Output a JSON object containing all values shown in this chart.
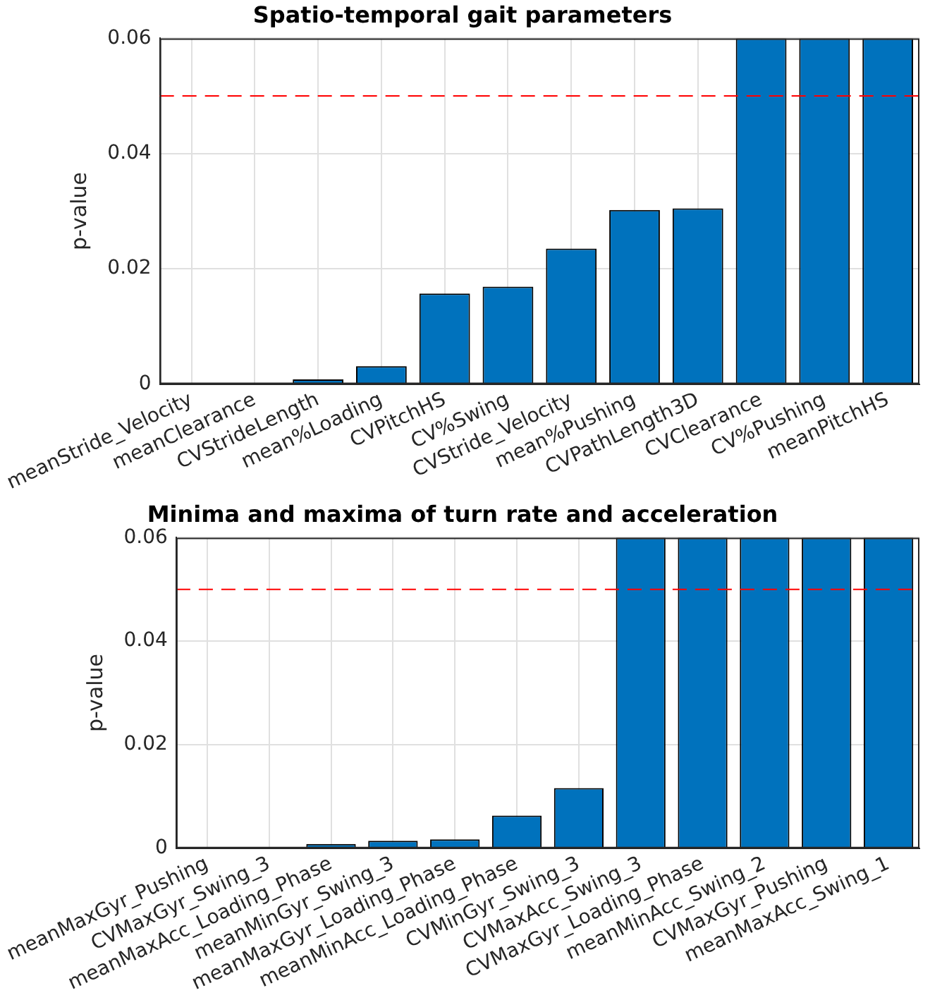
{
  "chart_data": [
    {
      "type": "bar",
      "title": "Spatio-temporal gait parameters",
      "ylabel": "p-value",
      "categories": [
        "meanStride_Velocity",
        "meanClearance",
        "CVStrideLength",
        "mean%Loading",
        "CVPitchHS",
        "CV%Swing",
        "CVStride_Velocity",
        "mean%Pushing",
        "CVPathLength3D",
        "CVClearance",
        "CV%Pushing",
        "meanPitchHS"
      ],
      "values": [
        0,
        0,
        0.0008,
        0.0031,
        0.0157,
        0.0169,
        0.0235,
        0.0302,
        0.0305,
        0.06,
        0.06,
        0.06
      ],
      "color": "#0072bd",
      "ylim": [
        0,
        0.06
      ],
      "yticks": [
        0,
        0.02,
        0.04,
        0.06
      ],
      "grid": true,
      "legend": false,
      "ref_lines": [
        {
          "axis": "y",
          "value": 0.05,
          "color": "#ff0000",
          "line_style": "dashed"
        }
      ]
    },
    {
      "type": "bar",
      "title": "Minima and maxima of turn rate and acceleration",
      "ylabel": "p-value",
      "categories": [
        "meanMaxGyr_Pushing",
        "CVMaxGyr_Swing_3",
        "meanMaxAcc_Loading_Phase",
        "meanMinGyr_Swing_3",
        "meanMaxGyr_Loading_Phase",
        "meanMinAcc_Loading_Phase",
        "CVMinGyr_Swing_3",
        "CVMaxAcc_Swing_3",
        "CVMaxGyr_Loading_Phase",
        "meanMinAcc_Swing_2",
        "CVMaxGyr_Pushing",
        "meanMaxAcc_Swing_1"
      ],
      "values": [
        0,
        0,
        0.0008,
        0.0014,
        0.0017,
        0.0063,
        0.0116,
        0.06,
        0.06,
        0.06,
        0.06,
        0.06
      ],
      "color": "#0072bd",
      "ylim": [
        0,
        0.06
      ],
      "yticks": [
        0,
        0.02,
        0.04,
        0.06
      ],
      "grid": true,
      "legend": false,
      "ref_lines": [
        {
          "axis": "y",
          "value": 0.05,
          "color": "#ff0000",
          "line_style": "dashed"
        }
      ]
    }
  ]
}
